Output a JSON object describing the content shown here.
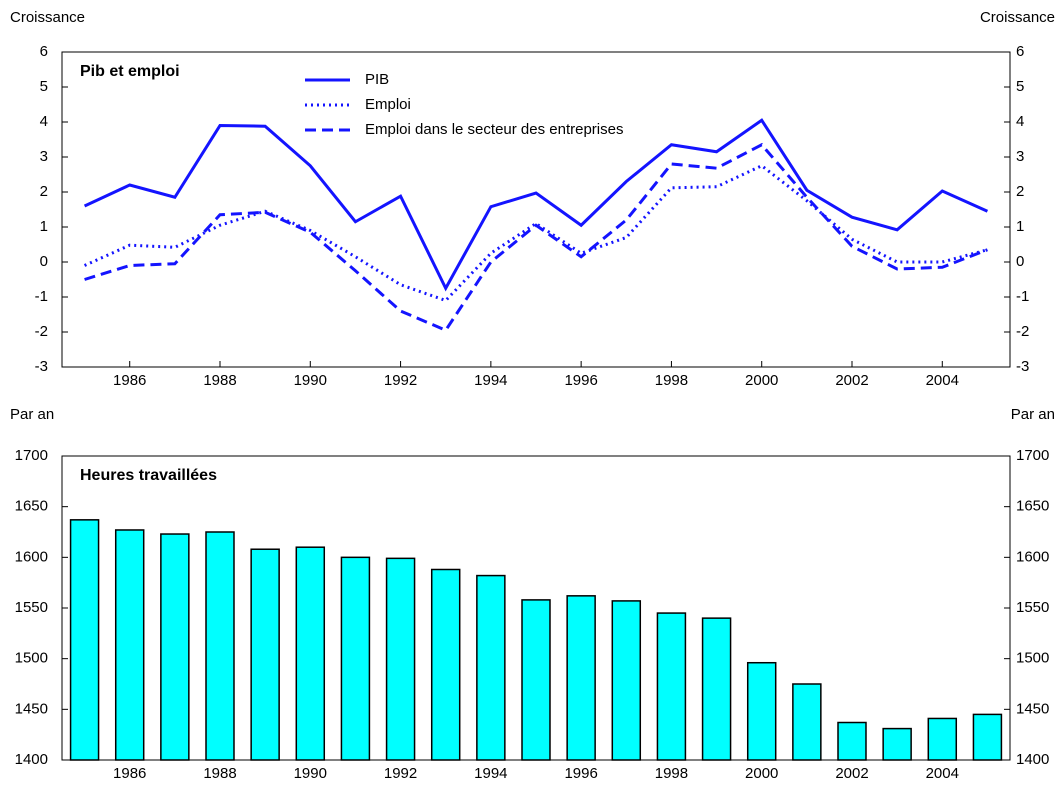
{
  "chart_data": [
    {
      "type": "line",
      "title": "Pib et emploi",
      "ylabel": "Croissance",
      "y2label": "Croissance",
      "x": [
        1985,
        1986,
        1987,
        1988,
        1989,
        1990,
        1991,
        1992,
        1993,
        1994,
        1995,
        1996,
        1997,
        1998,
        1999,
        2000,
        2001,
        2002,
        2003,
        2004,
        2005
      ],
      "xlim": [
        1984.5,
        2005.5
      ],
      "xticks": [
        1986,
        1988,
        1990,
        1992,
        1994,
        1996,
        1998,
        2000,
        2002,
        2004
      ],
      "ylim": [
        -3,
        6
      ],
      "yticks": [
        -3,
        -2,
        -1,
        0,
        1,
        2,
        3,
        4,
        5,
        6
      ],
      "y2lim": [
        -3,
        6
      ],
      "y2ticks": [
        -3,
        -2,
        -1,
        0,
        1,
        2,
        3,
        4,
        5,
        6
      ],
      "legend": "top",
      "series": [
        {
          "name": "PIB",
          "color": "#1414ff",
          "style": "solid",
          "values": [
            1.6,
            2.2,
            1.85,
            3.9,
            3.88,
            2.75,
            1.15,
            1.88,
            -0.75,
            1.58,
            1.97,
            1.05,
            2.3,
            3.35,
            3.15,
            4.05,
            2.05,
            1.28,
            0.92,
            2.03,
            1.45
          ]
        },
        {
          "name": "Emploi",
          "color": "#1414ff",
          "style": "dotted",
          "values": [
            -0.1,
            0.48,
            0.42,
            1.05,
            1.45,
            0.9,
            0.15,
            -0.65,
            -1.1,
            0.25,
            1.1,
            0.25,
            0.7,
            2.12,
            2.15,
            2.75,
            1.75,
            0.65,
            0.0,
            0.0,
            0.35
          ]
        },
        {
          "name": "Emploi dans le secteur des entreprises",
          "color": "#1414ff",
          "style": "dashed",
          "values": [
            -0.5,
            -0.1,
            -0.05,
            1.35,
            1.42,
            0.85,
            -0.25,
            -1.4,
            -1.95,
            0.0,
            1.05,
            0.15,
            1.2,
            2.8,
            2.68,
            3.35,
            1.85,
            0.45,
            -0.2,
            -0.15,
            0.35
          ]
        }
      ]
    },
    {
      "type": "bar",
      "title": "Heures travaillées",
      "ylabel": "Par an",
      "y2label": "Par an",
      "x": [
        1985,
        1986,
        1987,
        1988,
        1989,
        1990,
        1991,
        1992,
        1993,
        1994,
        1995,
        1996,
        1997,
        1998,
        1999,
        2000,
        2001,
        2002,
        2003,
        2004,
        2005
      ],
      "xlim": [
        1984.5,
        2005.5
      ],
      "xticks": [
        1986,
        1988,
        1990,
        1992,
        1994,
        1996,
        1998,
        2000,
        2002,
        2004
      ],
      "ylim": [
        1400,
        1700
      ],
      "yticks": [
        1400,
        1450,
        1500,
        1550,
        1600,
        1650,
        1700
      ],
      "y2lim": [
        1400,
        1700
      ],
      "y2ticks": [
        1400,
        1450,
        1500,
        1550,
        1600,
        1650,
        1700
      ],
      "color": "#00ffff",
      "values": [
        1637,
        1627,
        1623,
        1625,
        1608,
        1610,
        1600,
        1599,
        1588,
        1582,
        1558,
        1562,
        1557,
        1545,
        1540,
        1496,
        1475,
        1437,
        1431,
        1441,
        1445
      ]
    }
  ]
}
